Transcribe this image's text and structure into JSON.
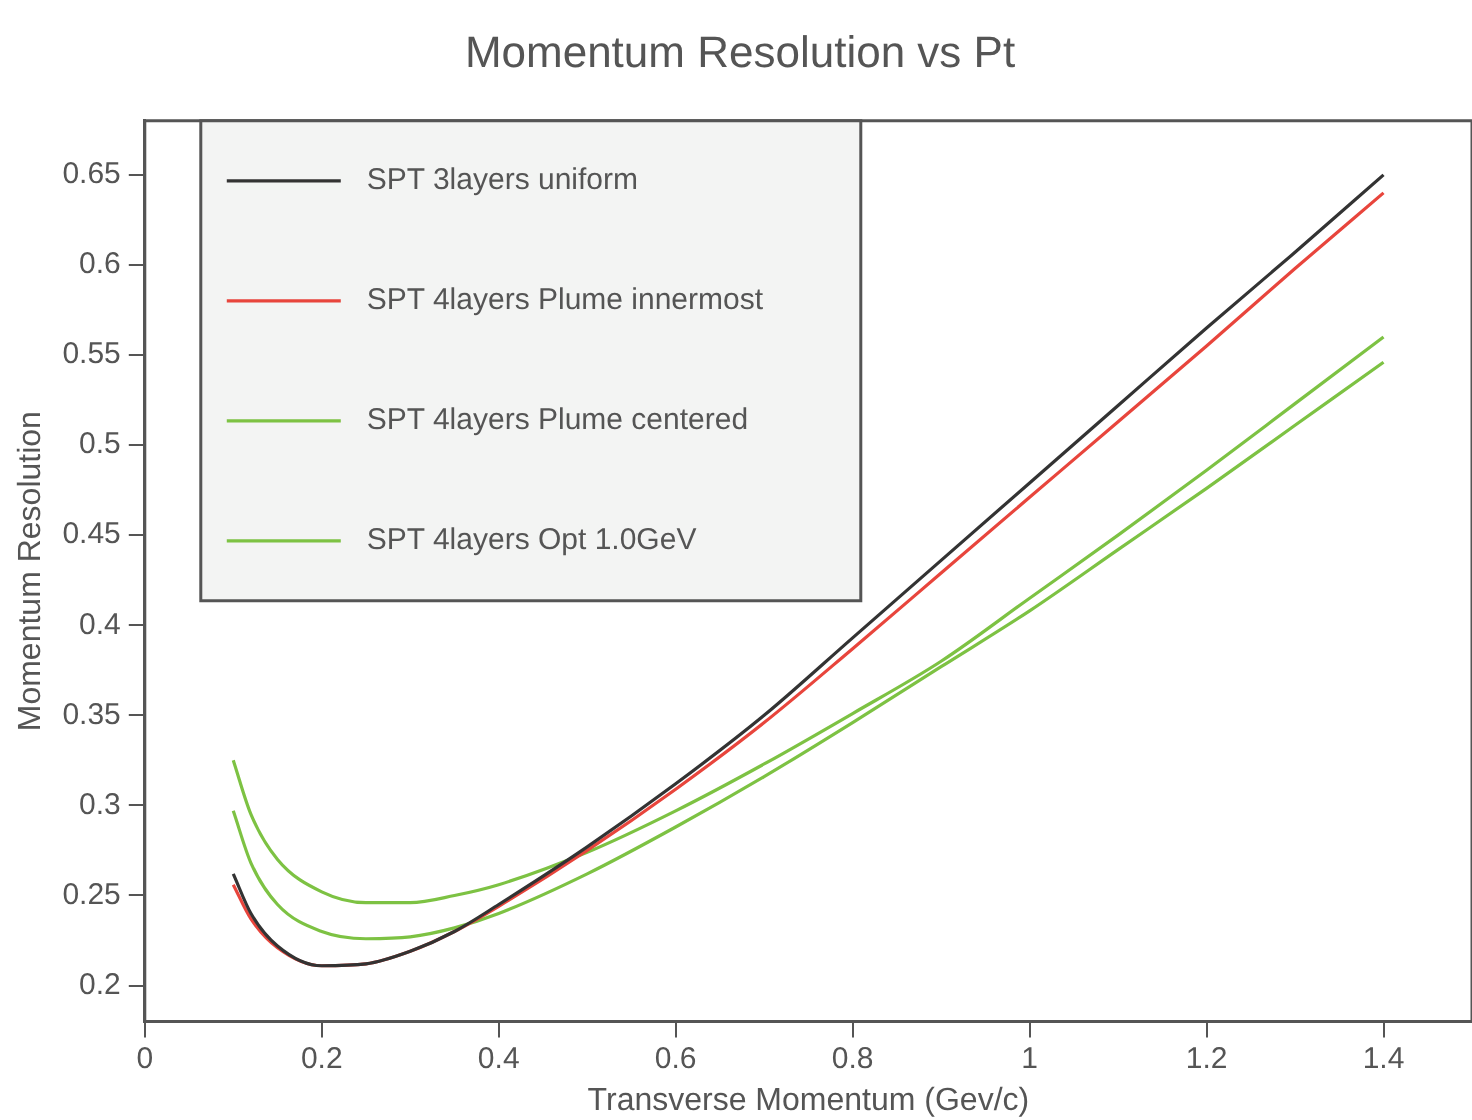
{
  "chart_data": {
    "type": "line",
    "title": "Momentum Resolution vs Pt",
    "xlabel": "Transverse Momentum (Gev/c)",
    "ylabel": "Momentum Resolution",
    "x": [
      0.1,
      0.12,
      0.15,
      0.2,
      0.25,
      0.3,
      0.35,
      0.4,
      0.5,
      0.6,
      0.7,
      0.8,
      0.9,
      1.0,
      1.1,
      1.2,
      1.3,
      1.4
    ],
    "series": [
      {
        "name": "SPT 3layers uniform",
        "color": "#333333",
        "values": [
          0.262,
          0.24,
          0.222,
          0.211,
          0.212,
          0.219,
          0.23,
          0.245,
          0.277,
          0.312,
          0.35,
          0.393,
          0.436,
          0.479,
          0.522,
          0.565,
          0.607,
          0.65
        ]
      },
      {
        "name": "SPT 4layers Plume innermost",
        "color": "#e8453c",
        "values": [
          0.256,
          0.237,
          0.221,
          0.211,
          0.212,
          0.219,
          0.23,
          0.244,
          0.275,
          0.309,
          0.346,
          0.387,
          0.429,
          0.471,
          0.513,
          0.555,
          0.598,
          0.64
        ]
      },
      {
        "name": "SPT 4layers Plume centered",
        "color": "#7dc243",
        "values": [
          0.325,
          0.295,
          0.27,
          0.252,
          0.246,
          0.246,
          0.25,
          0.256,
          0.274,
          0.297,
          0.323,
          0.351,
          0.38,
          0.415,
          0.45,
          0.486,
          0.523,
          0.56
        ]
      },
      {
        "name": "SPT 4layers Opt 1.0GeV",
        "color": "#7dc243",
        "values": [
          0.297,
          0.268,
          0.245,
          0.23,
          0.226,
          0.227,
          0.232,
          0.24,
          0.262,
          0.288,
          0.316,
          0.346,
          0.377,
          0.408,
          0.442,
          0.476,
          0.511,
          0.546
        ]
      }
    ],
    "xlim": [
      0,
      1.5
    ],
    "xticks": [
      0,
      0.2,
      0.4,
      0.6,
      0.8,
      1,
      1.2,
      1.4
    ],
    "ylim": [
      0.18,
      0.68
    ],
    "yticks": [
      0.2,
      0.25,
      0.3,
      0.35,
      0.4,
      0.45,
      0.5,
      0.55,
      0.6,
      0.65
    ],
    "grid": false,
    "legend": "top left",
    "marker": "none",
    "line_style": "solid"
  }
}
